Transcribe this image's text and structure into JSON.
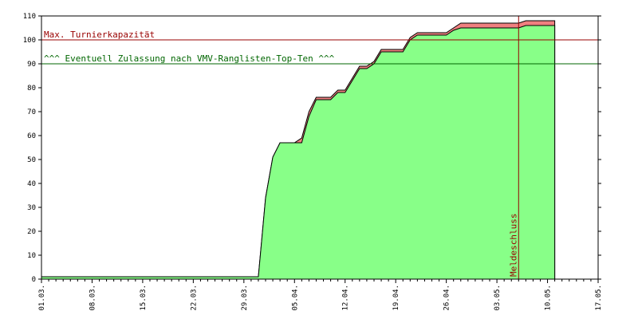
{
  "chart_data": {
    "type": "area",
    "title": "",
    "xlabel": "",
    "ylabel": "",
    "xlim": [
      "2023-03-01",
      "2023-05-17"
    ],
    "ylim": [
      0,
      110
    ],
    "grid": false,
    "yticks": [
      0,
      10,
      20,
      30,
      40,
      50,
      60,
      70,
      80,
      90,
      100,
      110
    ],
    "xticks": [
      "01.03.",
      "08.03.",
      "15.03.",
      "22.03.",
      "29.03.",
      "05.04.",
      "12.04.",
      "19.04.",
      "26.04.",
      "03.05.",
      "10.05.",
      "17.05."
    ],
    "series": [
      {
        "role": "total",
        "color": "#f08080",
        "x": [
          "2023-03-01",
          "2023-03-31",
          "2023-04-01",
          "2023-04-02",
          "2023-04-03",
          "2023-04-05",
          "2023-04-06",
          "2023-04-07",
          "2023-04-08",
          "2023-04-10",
          "2023-04-11",
          "2023-04-12",
          "2023-04-13",
          "2023-04-14",
          "2023-04-15",
          "2023-04-16",
          "2023-04-17",
          "2023-04-18",
          "2023-04-20",
          "2023-04-21",
          "2023-04-22",
          "2023-04-26",
          "2023-04-27",
          "2023-04-28",
          "2023-05-06",
          "2023-05-07",
          "2023-05-11"
        ],
        "y": [
          1,
          1,
          34,
          51,
          57,
          57,
          59,
          70,
          76,
          76,
          79,
          79,
          84,
          89,
          89,
          91,
          96,
          96,
          96,
          101,
          103,
          103,
          105,
          107,
          107,
          108,
          108
        ]
      },
      {
        "role": "confirmed",
        "color": "#88ff88",
        "x": [
          "2023-03-01",
          "2023-03-31",
          "2023-04-01",
          "2023-04-02",
          "2023-04-03",
          "2023-04-05",
          "2023-04-06",
          "2023-04-07",
          "2023-04-08",
          "2023-04-10",
          "2023-04-11",
          "2023-04-12",
          "2023-04-13",
          "2023-04-14",
          "2023-04-15",
          "2023-04-16",
          "2023-04-17",
          "2023-04-18",
          "2023-04-20",
          "2023-04-21",
          "2023-04-22",
          "2023-04-26",
          "2023-04-27",
          "2023-04-28",
          "2023-05-06",
          "2023-05-07",
          "2023-05-11"
        ],
        "y": [
          1,
          1,
          34,
          51,
          57,
          57,
          57,
          68,
          75,
          75,
          78,
          78,
          83,
          88,
          88,
          90,
          95,
          95,
          95,
          100,
          102,
          102,
          104,
          105,
          105,
          106,
          106
        ]
      }
    ],
    "reference_lines": [
      {
        "orientation": "horizontal",
        "value": 100,
        "color": "#990000",
        "label": "Max. Turnierkapazität"
      },
      {
        "orientation": "horizontal",
        "value": 90,
        "color": "#006600",
        "label": "^^^ Eventuell Zulassung nach VMV-Ranglisten-Top-Ten ^^^"
      },
      {
        "orientation": "vertical",
        "value": "2023-05-06",
        "color": "#990000",
        "label": "Meldeschluss"
      }
    ]
  }
}
